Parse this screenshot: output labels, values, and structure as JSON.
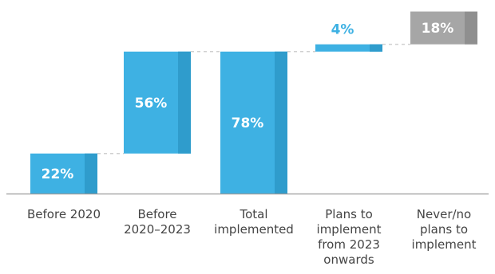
{
  "chart_data": {
    "type": "bar",
    "subtype": "waterfall",
    "categories": [
      [
        "Before 2020"
      ],
      [
        "Before",
        "2020–2023"
      ],
      [
        "Total",
        "implemented"
      ],
      [
        "Plans to",
        "implement",
        "from 2023",
        "onwards"
      ],
      [
        "Never/no",
        "plans to",
        "implement"
      ]
    ],
    "values": [
      22,
      56,
      78,
      4,
      18
    ],
    "bases": [
      0,
      22,
      0,
      78,
      82
    ],
    "value_labels": [
      "22%",
      "56%",
      "78%",
      "4%",
      "18%"
    ],
    "ylim": [
      0,
      100
    ],
    "grid": false,
    "legend": "none",
    "colors": {
      "bar": "#3eb1e3",
      "bar_shade": "#2f9ccc",
      "bar_grey": "#a6a6a6",
      "bar_grey_shade": "#8f8f8f",
      "label_inside": "#ffffff",
      "label_outside": "#3eb1e3",
      "connector": "#d0d0d0",
      "axis": "#9a9a9a"
    }
  }
}
